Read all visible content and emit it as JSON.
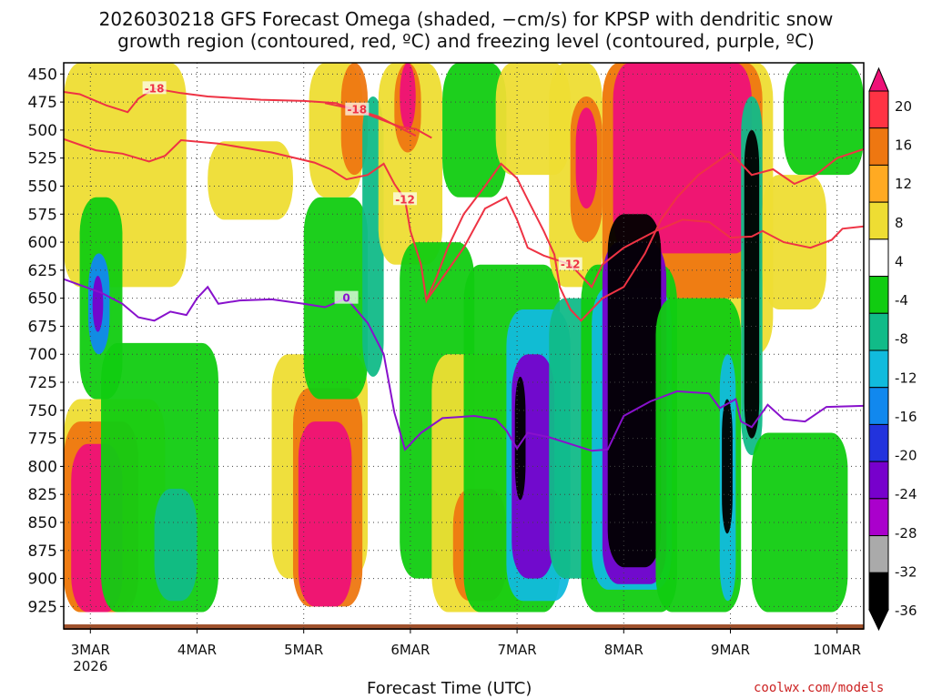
{
  "chart_data": {
    "type": "heatmap",
    "title_line1": "2026030218 GFS Forecast Omega (shaded, −cm/s) for KPSP with dendritic snow",
    "title_line2": "growth region (contoured, red, ºC) and freezing level (contoured, purple, ºC)",
    "xlabel": "Forecast Time (UTC)",
    "ylabel": "",
    "credit": "coolwx.com/models",
    "x_tick_labels": [
      "3MAR",
      "4MAR",
      "5MAR",
      "6MAR",
      "7MAR",
      "8MAR",
      "9MAR",
      "10MAR"
    ],
    "x_tick_days": [
      0,
      1,
      2,
      3,
      4,
      5,
      6,
      7
    ],
    "x_range_days": [
      -0.25,
      7.25
    ],
    "year_label": "2026",
    "y_tick_labels": [
      "450",
      "475",
      "500",
      "525",
      "550",
      "575",
      "600",
      "625",
      "650",
      "675",
      "700",
      "725",
      "750",
      "775",
      "800",
      "825",
      "850",
      "875",
      "900",
      "925"
    ],
    "y_ticks_hpa": [
      450,
      475,
      500,
      525,
      550,
      575,
      600,
      625,
      650,
      675,
      700,
      725,
      750,
      775,
      800,
      825,
      850,
      875,
      900,
      925
    ],
    "y_range_hpa": [
      440,
      945
    ],
    "colorbar": {
      "levels": [
        "20",
        "16",
        "12",
        "8",
        "4",
        "-4",
        "-8",
        "-12",
        "-16",
        "-20",
        "-24",
        "-28",
        "-32",
        "-36"
      ],
      "colors": [
        "#ee1177",
        "#ff3344",
        "#ee7711",
        "#ffaa22",
        "#eedd33",
        "#ffffff",
        "#11cc11",
        "#11bb88",
        "#11bbdd",
        "#1188ee",
        "#2233dd",
        "#7700cc",
        "#aa00cc",
        "#aaaaaa",
        "#000000",
        "#ee1177"
      ]
    },
    "contours_dendritic": [
      {
        "label": "-18",
        "points": [
          [
            -0.25,
            466
          ],
          [
            -0.1,
            468
          ],
          [
            0.15,
            478
          ],
          [
            0.35,
            484
          ],
          [
            0.45,
            472
          ],
          [
            0.6,
            463
          ],
          [
            0.85,
            467
          ],
          [
            1.1,
            470
          ],
          [
            1.6,
            473
          ],
          [
            2.0,
            474
          ],
          [
            2.3,
            476
          ],
          [
            2.6,
            486
          ],
          [
            2.9,
            497
          ],
          [
            3.05,
            499
          ],
          [
            3.2,
            507
          ]
        ]
      },
      {
        "label": "-18",
        "points": [
          [
            2.2,
            476
          ],
          [
            2.5,
            482
          ],
          [
            2.7,
            488
          ],
          [
            2.9,
            498
          ],
          [
            3.05,
            505
          ]
        ]
      },
      {
        "label": "-12",
        "points": [
          [
            -0.25,
            508
          ],
          [
            0.05,
            518
          ],
          [
            0.3,
            521
          ],
          [
            0.55,
            528
          ],
          [
            0.7,
            523
          ],
          [
            0.85,
            509
          ],
          [
            1.2,
            512
          ],
          [
            1.7,
            520
          ],
          [
            2.1,
            529
          ],
          [
            2.25,
            535
          ],
          [
            2.4,
            544
          ],
          [
            2.6,
            540
          ],
          [
            2.75,
            530
          ],
          [
            2.85,
            548
          ],
          [
            2.95,
            562
          ],
          [
            3.0,
            590
          ],
          [
            3.1,
            620
          ],
          [
            3.15,
            652
          ],
          [
            3.25,
            630
          ],
          [
            3.35,
            605
          ],
          [
            3.5,
            575
          ],
          [
            3.7,
            550
          ],
          [
            3.85,
            530
          ],
          [
            4.0,
            543
          ],
          [
            4.1,
            562
          ],
          [
            4.25,
            590
          ],
          [
            4.35,
            611
          ],
          [
            4.4,
            640
          ],
          [
            4.5,
            660
          ],
          [
            4.6,
            670
          ],
          [
            4.8,
            650
          ],
          [
            5.0,
            640
          ],
          [
            5.2,
            610
          ],
          [
            5.35,
            580
          ],
          [
            5.5,
            560
          ],
          [
            5.7,
            540
          ],
          [
            6.0,
            520
          ],
          [
            6.2,
            540
          ],
          [
            6.4,
            535
          ],
          [
            6.6,
            548
          ],
          [
            6.8,
            540
          ],
          [
            7.0,
            525
          ],
          [
            7.25,
            517
          ]
        ]
      },
      {
        "label": "-12",
        "points": [
          [
            3.15,
            652
          ],
          [
            3.3,
            632
          ],
          [
            3.5,
            605
          ],
          [
            3.7,
            570
          ],
          [
            3.9,
            560
          ],
          [
            4.0,
            580
          ],
          [
            4.1,
            605
          ],
          [
            4.25,
            612
          ],
          [
            4.5,
            620
          ],
          [
            4.6,
            630
          ],
          [
            4.7,
            640
          ],
          [
            4.8,
            620
          ],
          [
            5.0,
            605
          ],
          [
            5.3,
            590
          ],
          [
            5.55,
            580
          ],
          [
            5.8,
            582
          ],
          [
            6.0,
            596
          ],
          [
            6.2,
            595
          ],
          [
            6.3,
            590
          ],
          [
            6.5,
            600
          ],
          [
            6.75,
            605
          ],
          [
            6.95,
            598
          ],
          [
            7.05,
            588
          ],
          [
            7.25,
            586
          ]
        ]
      }
    ],
    "contours_freezing": [
      {
        "label": "0",
        "points": [
          [
            -0.25,
            633
          ],
          [
            0.1,
            645
          ],
          [
            0.3,
            655
          ],
          [
            0.45,
            667
          ],
          [
            0.6,
            670
          ],
          [
            0.75,
            662
          ],
          [
            0.9,
            665
          ],
          [
            1.0,
            650
          ],
          [
            1.1,
            640
          ],
          [
            1.2,
            655
          ],
          [
            1.4,
            652
          ],
          [
            1.7,
            651
          ],
          [
            2.0,
            655
          ],
          [
            2.2,
            658
          ],
          [
            2.4,
            650
          ],
          [
            2.6,
            672
          ],
          [
            2.75,
            700
          ],
          [
            2.85,
            752
          ],
          [
            2.95,
            785
          ],
          [
            3.1,
            770
          ],
          [
            3.3,
            757
          ],
          [
            3.6,
            755
          ],
          [
            3.8,
            758
          ],
          [
            3.9,
            768
          ],
          [
            4.0,
            784
          ],
          [
            4.1,
            770
          ],
          [
            4.3,
            774
          ],
          [
            4.5,
            780
          ],
          [
            4.7,
            786
          ],
          [
            4.85,
            785
          ],
          [
            5.0,
            755
          ],
          [
            5.25,
            742
          ],
          [
            5.5,
            733
          ],
          [
            5.8,
            735
          ],
          [
            5.9,
            748
          ],
          [
            6.05,
            740
          ],
          [
            6.1,
            760
          ],
          [
            6.2,
            765
          ],
          [
            6.35,
            745
          ],
          [
            6.5,
            758
          ],
          [
            6.7,
            760
          ],
          [
            6.9,
            747
          ],
          [
            7.25,
            746
          ]
        ]
      }
    ],
    "shading_blobs": [
      {
        "level": 4,
        "t0": -0.25,
        "t1": 0.9,
        "p0": 440,
        "p1": 640
      },
      {
        "level": 4,
        "t0": 1.1,
        "t1": 1.9,
        "p0": 510,
        "p1": 580
      },
      {
        "level": 4,
        "t0": -0.25,
        "t1": 0.7,
        "p0": 740,
        "p1": 930
      },
      {
        "level": 12,
        "t0": -0.25,
        "t1": 0.45,
        "p0": 760,
        "p1": 930
      },
      {
        "level": 20,
        "t0": -0.18,
        "t1": 0.3,
        "p0": 780,
        "p1": 930
      },
      {
        "level": -8,
        "t0": 0.1,
        "t1": 1.2,
        "p0": 690,
        "p1": 930
      },
      {
        "level": -12,
        "t0": 0.6,
        "t1": 1.0,
        "p0": 820,
        "p1": 920
      },
      {
        "level": -8,
        "t0": -0.1,
        "t1": 0.3,
        "p0": 560,
        "p1": 740
      },
      {
        "level": -20,
        "t0": -0.02,
        "t1": 0.18,
        "p0": 610,
        "p1": 700
      },
      {
        "level": -28,
        "t0": 0.02,
        "t1": 0.12,
        "p0": 630,
        "p1": 680
      },
      {
        "level": 4,
        "t0": 1.7,
        "t1": 2.6,
        "p0": 700,
        "p1": 900
      },
      {
        "level": 12,
        "t0": 1.9,
        "t1": 2.55,
        "p0": 730,
        "p1": 925
      },
      {
        "level": 20,
        "t0": 1.95,
        "t1": 2.45,
        "p0": 760,
        "p1": 925
      },
      {
        "level": -8,
        "t0": 2.0,
        "t1": 2.6,
        "p0": 560,
        "p1": 740
      },
      {
        "level": 4,
        "t0": 2.05,
        "t1": 2.55,
        "p0": 440,
        "p1": 560
      },
      {
        "level": 12,
        "t0": 2.35,
        "t1": 2.6,
        "p0": 440,
        "p1": 540
      },
      {
        "level": -12,
        "t0": 2.55,
        "t1": 2.75,
        "p0": 470,
        "p1": 720
      },
      {
        "level": 4,
        "t0": 2.7,
        "t1": 3.3,
        "p0": 440,
        "p1": 620
      },
      {
        "level": 12,
        "t0": 2.85,
        "t1": 3.1,
        "p0": 440,
        "p1": 520
      },
      {
        "level": 20,
        "t0": 2.9,
        "t1": 3.05,
        "p0": 440,
        "p1": 500
      },
      {
        "level": -8,
        "t0": 2.9,
        "t1": 3.6,
        "p0": 600,
        "p1": 900
      },
      {
        "level": 4,
        "t0": 3.2,
        "t1": 4.1,
        "p0": 700,
        "p1": 930
      },
      {
        "level": 12,
        "t0": 3.4,
        "t1": 3.9,
        "p0": 820,
        "p1": 920
      },
      {
        "level": -8,
        "t0": 3.3,
        "t1": 3.9,
        "p0": 440,
        "p1": 560
      },
      {
        "level": 4,
        "t0": 3.8,
        "t1": 4.5,
        "p0": 440,
        "p1": 540
      },
      {
        "level": -8,
        "t0": 3.5,
        "t1": 4.4,
        "p0": 620,
        "p1": 930
      },
      {
        "level": -16,
        "t0": 3.9,
        "t1": 4.5,
        "p0": 660,
        "p1": 920
      },
      {
        "level": -28,
        "t0": 3.95,
        "t1": 4.35,
        "p0": 700,
        "p1": 900
      },
      {
        "level": -36,
        "t0": 3.98,
        "t1": 4.08,
        "p0": 720,
        "p1": 830
      },
      {
        "level": -12,
        "t0": 4.3,
        "t1": 4.9,
        "p0": 650,
        "p1": 900
      },
      {
        "level": 4,
        "t0": 4.3,
        "t1": 4.8,
        "p0": 440,
        "p1": 640
      },
      {
        "level": 12,
        "t0": 4.5,
        "t1": 4.8,
        "p0": 470,
        "p1": 600
      },
      {
        "level": 20,
        "t0": 4.55,
        "t1": 4.75,
        "p0": 480,
        "p1": 570
      },
      {
        "level": 4,
        "t0": 4.8,
        "t1": 6.4,
        "p0": 440,
        "p1": 700
      },
      {
        "level": 12,
        "t0": 4.8,
        "t1": 6.3,
        "p0": 440,
        "p1": 650
      },
      {
        "level": 20,
        "t0": 4.9,
        "t1": 6.2,
        "p0": 440,
        "p1": 610
      },
      {
        "level": -8,
        "t0": 4.6,
        "t1": 5.5,
        "p0": 620,
        "p1": 930
      },
      {
        "level": -16,
        "t0": 4.7,
        "t1": 5.45,
        "p0": 640,
        "p1": 910
      },
      {
        "level": -28,
        "t0": 4.8,
        "t1": 5.4,
        "p0": 600,
        "p1": 905
      },
      {
        "level": -36,
        "t0": 4.85,
        "t1": 5.35,
        "p0": 575,
        "p1": 890
      },
      {
        "level": -8,
        "t0": 5.3,
        "t1": 6.1,
        "p0": 650,
        "p1": 930
      },
      {
        "level": -16,
        "t0": 5.9,
        "t1": 6.05,
        "p0": 700,
        "p1": 920
      },
      {
        "level": -36,
        "t0": 5.92,
        "t1": 6.02,
        "p0": 740,
        "p1": 860
      },
      {
        "level": -12,
        "t0": 6.1,
        "t1": 6.3,
        "p0": 470,
        "p1": 790
      },
      {
        "level": -36,
        "t0": 6.13,
        "t1": 6.27,
        "p0": 500,
        "p1": 775
      },
      {
        "level": -8,
        "t0": 6.5,
        "t1": 7.25,
        "p0": 440,
        "p1": 540
      },
      {
        "level": 4,
        "t0": 6.3,
        "t1": 6.9,
        "p0": 540,
        "p1": 660
      },
      {
        "level": -8,
        "t0": 6.2,
        "t1": 7.1,
        "p0": 770,
        "p1": 930
      }
    ]
  }
}
